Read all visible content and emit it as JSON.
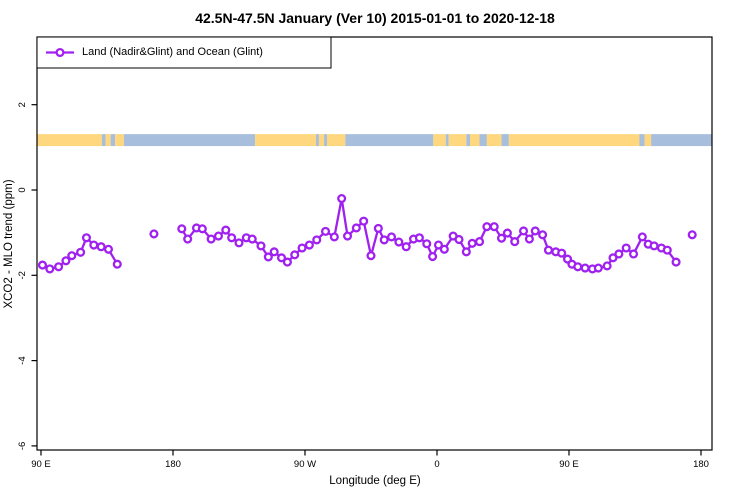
{
  "title": "42.5N-47.5N January (Ver 10)   2015-01-01 to 2020-12-18",
  "legend": {
    "label": "Land (Nadir&Glint) and Ocean (Glint)"
  },
  "axes": {
    "x_label": "Longitude (deg E)",
    "y_label": "XCO2 - MLO trend (ppm)"
  },
  "colors": {
    "series": "#A020F0",
    "marker_fill": "#ffffff",
    "land": "#FFD77E",
    "ocean": "#A7BEDC",
    "axis": "#000000"
  },
  "chart_data": {
    "type": "line",
    "title": "42.5N-47.5N January (Ver 10)   2015-01-01 to 2020-12-18",
    "xlabel": "Longitude (deg E)",
    "ylabel": "XCO2 - MLO trend (ppm)",
    "xlim": [
      87.3,
      547.5
    ],
    "ylim": [
      -6.1,
      3.6
    ],
    "grid": false,
    "legend_position": "top-left",
    "x_ticks": [
      {
        "lon": 90,
        "label": "90 E"
      },
      {
        "lon": 180,
        "label": "180"
      },
      {
        "lon": 270,
        "label": "90 W"
      },
      {
        "lon": 360,
        "label": "0"
      },
      {
        "lon": 450,
        "label": "90 E"
      },
      {
        "lon": 540,
        "label": "180"
      }
    ],
    "y_ticks": [
      {
        "v": 2,
        "label": "2"
      },
      {
        "v": 0,
        "label": "0"
      },
      {
        "v": -2,
        "label": "-2"
      },
      {
        "v": -4,
        "label": "-4"
      },
      {
        "v": -6,
        "label": "-6"
      }
    ],
    "map_strip": {
      "y_range_ppm": [
        1.03,
        1.31
      ],
      "segments": [
        {
          "type": "land",
          "from": 87.3,
          "to": 131.5
        },
        {
          "type": "ocean",
          "from": 131.5,
          "to": 134
        },
        {
          "type": "land",
          "from": 134,
          "to": 137.5
        },
        {
          "type": "ocean",
          "from": 137.5,
          "to": 140.5
        },
        {
          "type": "land",
          "from": 140.5,
          "to": 146.5
        },
        {
          "type": "ocean",
          "from": 146.5,
          "to": 236
        },
        {
          "type": "land",
          "from": 236,
          "to": 277.5
        },
        {
          "type": "ocean",
          "from": 277.5,
          "to": 279.5
        },
        {
          "type": "land",
          "from": 279.5,
          "to": 283
        },
        {
          "type": "ocean",
          "from": 283,
          "to": 285
        },
        {
          "type": "land",
          "from": 285,
          "to": 297.5
        },
        {
          "type": "ocean",
          "from": 297.5,
          "to": 357.5
        },
        {
          "type": "land",
          "from": 357.5,
          "to": 366
        },
        {
          "type": "ocean",
          "from": 366,
          "to": 368
        },
        {
          "type": "land",
          "from": 368,
          "to": 380
        },
        {
          "type": "ocean",
          "from": 380,
          "to": 382.5
        },
        {
          "type": "land",
          "from": 382.5,
          "to": 389
        },
        {
          "type": "ocean",
          "from": 389,
          "to": 394
        },
        {
          "type": "land",
          "from": 394,
          "to": 404
        },
        {
          "type": "ocean",
          "from": 404,
          "to": 409
        },
        {
          "type": "land",
          "from": 409,
          "to": 498
        },
        {
          "type": "ocean",
          "from": 498,
          "to": 501.5
        },
        {
          "type": "land",
          "from": 501.5,
          "to": 506
        },
        {
          "type": "ocean",
          "from": 506,
          "to": 547.5
        }
      ]
    },
    "series": [
      {
        "name": "Land (Nadir&Glint) and Ocean (Glint)",
        "runs": [
          [
            [
              91,
              -1.76
            ],
            [
              96,
              -1.85
            ],
            [
              102,
              -1.8
            ],
            [
              107,
              -1.66
            ],
            [
              111,
              -1.54
            ],
            [
              117,
              -1.46
            ],
            [
              121,
              -1.12
            ],
            [
              126,
              -1.29
            ],
            [
              131,
              -1.33
            ],
            [
              136,
              -1.39
            ],
            [
              142,
              -1.74
            ]
          ],
          [
            [
              167,
              -1.03
            ]
          ],
          [
            [
              186,
              -0.91
            ],
            [
              190,
              -1.15
            ],
            [
              196,
              -0.89
            ],
            [
              200,
              -0.91
            ],
            [
              206,
              -1.15
            ],
            [
              211,
              -1.08
            ],
            [
              216,
              -0.94
            ],
            [
              220,
              -1.12
            ],
            [
              225,
              -1.24
            ],
            [
              230,
              -1.12
            ],
            [
              234,
              -1.15
            ],
            [
              240,
              -1.31
            ],
            [
              245,
              -1.57
            ],
            [
              249,
              -1.45
            ],
            [
              254,
              -1.59
            ],
            [
              258,
              -1.69
            ],
            [
              263,
              -1.52
            ],
            [
              268,
              -1.36
            ],
            [
              273,
              -1.29
            ],
            [
              278,
              -1.17
            ],
            [
              284,
              -0.97
            ],
            [
              290,
              -1.1
            ],
            [
              295,
              -0.2
            ],
            [
              299,
              -1.08
            ],
            [
              305,
              -0.89
            ],
            [
              310,
              -0.73
            ],
            [
              315,
              -1.54
            ],
            [
              320,
              -0.9
            ],
            [
              324,
              -1.17
            ],
            [
              329,
              -1.1
            ],
            [
              334,
              -1.22
            ],
            [
              339,
              -1.33
            ],
            [
              344,
              -1.15
            ],
            [
              348,
              -1.12
            ],
            [
              353,
              -1.26
            ],
            [
              357,
              -1.56
            ],
            [
              361,
              -1.29
            ],
            [
              365,
              -1.39
            ],
            [
              371,
              -1.08
            ],
            [
              375,
              -1.16
            ],
            [
              380,
              -1.45
            ],
            [
              384,
              -1.25
            ],
            [
              389,
              -1.21
            ],
            [
              394,
              -0.86
            ],
            [
              399,
              -0.86
            ],
            [
              404,
              -1.13
            ],
            [
              408,
              -1.01
            ],
            [
              413,
              -1.21
            ],
            [
              419,
              -0.96
            ],
            [
              423,
              -1.15
            ],
            [
              427,
              -0.96
            ],
            [
              432,
              -1.05
            ],
            [
              436,
              -1.41
            ],
            [
              441,
              -1.45
            ],
            [
              445,
              -1.48
            ],
            [
              449,
              -1.62
            ],
            [
              452,
              -1.74
            ],
            [
              456,
              -1.8
            ],
            [
              461,
              -1.83
            ],
            [
              466,
              -1.85
            ],
            [
              470,
              -1.83
            ],
            [
              476,
              -1.78
            ],
            [
              480,
              -1.59
            ],
            [
              484,
              -1.5
            ],
            [
              489,
              -1.36
            ],
            [
              494,
              -1.5
            ],
            [
              500,
              -1.1
            ],
            [
              504,
              -1.27
            ],
            [
              508,
              -1.31
            ],
            [
              513,
              -1.36
            ],
            [
              517,
              -1.41
            ],
            [
              523,
              -1.69
            ]
          ],
          [
            [
              534,
              -1.05
            ]
          ]
        ]
      }
    ]
  }
}
